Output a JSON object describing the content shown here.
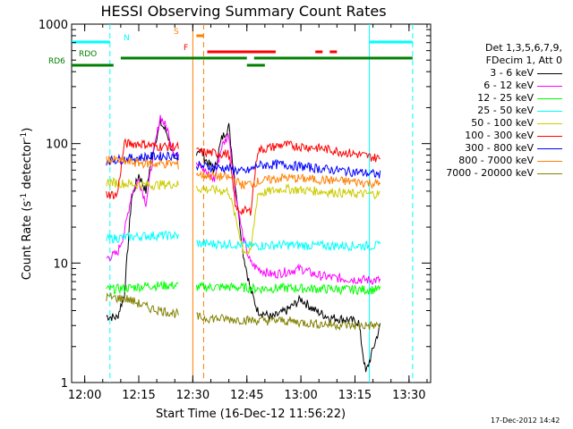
{
  "chart_data": {
    "type": "line",
    "title": "HESSI Observing Summary Count Rates",
    "xlabel": "Start Time (16-Dec-12 11:56:22)",
    "ylabel_main": "Count Rate (s",
    "ylabel_sup1": "-1",
    "ylabel_mid": " detector",
    "ylabel_sup2": "-1",
    "ylabel_end": ")",
    "y_scale": "log",
    "ylim": [
      1,
      1000
    ],
    "xlim": [
      "11:56:22",
      "13:36:00"
    ],
    "x_ticks": [
      "12:00",
      "12:15",
      "12:30",
      "12:45",
      "13:00",
      "13:15",
      "13:30"
    ],
    "y_ticks": [
      "1",
      "10",
      "100",
      "1000"
    ],
    "legend_header": [
      "Det 1,3,5,6,7,9,",
      "FDecim 1, Att 0"
    ],
    "series": [
      {
        "name": "3 - 6 keV",
        "color": "#000000",
        "values_desc": [
          [
            "12:06",
            3.6
          ],
          [
            "12:09",
            3.5
          ],
          [
            "12:11",
            5.5
          ],
          [
            "12:13",
            35
          ],
          [
            "12:15",
            55
          ],
          [
            "12:17",
            40
          ],
          [
            "12:19",
            90
          ],
          [
            "12:21",
            150
          ],
          [
            "12:23",
            120
          ],
          [
            "12:25",
            70
          ],
          [
            "12:32",
            90
          ],
          [
            "12:34",
            70
          ],
          [
            "12:36",
            60
          ],
          [
            "12:38",
            110
          ],
          [
            "12:40",
            140
          ],
          [
            "12:42",
            40
          ],
          [
            "12:44",
            12
          ],
          [
            "12:46",
            6
          ],
          [
            "12:48",
            4
          ],
          [
            "12:52",
            3.5
          ],
          [
            "12:56",
            4
          ],
          [
            "13:00",
            5
          ],
          [
            "13:04",
            4
          ],
          [
            "13:08",
            3.5
          ],
          [
            "13:12",
            3.4
          ],
          [
            "13:16",
            3.2
          ],
          [
            "13:18",
            1.2
          ],
          [
            "13:22",
            3
          ]
        ]
      },
      {
        "name": "6 - 12 keV",
        "color": "#ff00ff",
        "values_desc": [
          [
            "12:06",
            11
          ],
          [
            "12:09",
            12
          ],
          [
            "12:11",
            18
          ],
          [
            "12:13",
            38
          ],
          [
            "12:15",
            50
          ],
          [
            "12:17",
            32
          ],
          [
            "12:19",
            80
          ],
          [
            "12:21",
            170
          ],
          [
            "12:23",
            130
          ],
          [
            "12:25",
            80
          ],
          [
            "12:32",
            70
          ],
          [
            "12:34",
            55
          ],
          [
            "12:36",
            50
          ],
          [
            "12:38",
            95
          ],
          [
            "12:40",
            120
          ],
          [
            "12:42",
            35
          ],
          [
            "12:44",
            16
          ],
          [
            "12:46",
            10
          ],
          [
            "12:48",
            9
          ],
          [
            "12:52",
            8
          ],
          [
            "12:56",
            8.5
          ],
          [
            "13:00",
            9
          ],
          [
            "13:04",
            8
          ],
          [
            "13:08",
            7.6
          ],
          [
            "13:12",
            7.4
          ],
          [
            "13:16",
            7.3
          ],
          [
            "13:20",
            7.2
          ],
          [
            "13:22",
            7.2
          ]
        ]
      },
      {
        "name": "12 - 25 keV",
        "color": "#00ff00",
        "values_desc": [
          [
            "12:06",
            6
          ],
          [
            "12:12",
            6.2
          ],
          [
            "12:18",
            6.5
          ],
          [
            "12:25",
            6.5
          ],
          [
            "12:32",
            6.3
          ],
          [
            "12:40",
            6.3
          ],
          [
            "12:46",
            6.2
          ],
          [
            "12:48",
            6.1
          ],
          [
            "12:55",
            6.2
          ],
          [
            "13:05",
            6.1
          ],
          [
            "13:15",
            6
          ],
          [
            "13:22",
            6
          ]
        ]
      },
      {
        "name": "25 - 50 keV",
        "color": "#00ffff",
        "values_desc": [
          [
            "12:06",
            16
          ],
          [
            "12:12",
            16.5
          ],
          [
            "12:18",
            17
          ],
          [
            "12:25",
            17
          ],
          [
            "12:32",
            14.5
          ],
          [
            "12:40",
            14.5
          ],
          [
            "12:46",
            14
          ],
          [
            "12:48",
            14
          ],
          [
            "12:55",
            14.2
          ],
          [
            "13:05",
            14
          ],
          [
            "13:15",
            14
          ],
          [
            "13:22",
            14
          ]
        ]
      },
      {
        "name": "50 - 100 keV",
        "color": "#cccc00",
        "values_desc": [
          [
            "12:06",
            48
          ],
          [
            "12:12",
            46
          ],
          [
            "12:18",
            45
          ],
          [
            "12:25",
            46
          ],
          [
            "12:32",
            42
          ],
          [
            "12:40",
            40
          ],
          [
            "12:44",
            13
          ],
          [
            "12:46",
            12
          ],
          [
            "12:48",
            38
          ],
          [
            "12:55",
            42
          ],
          [
            "13:05",
            40
          ],
          [
            "13:15",
            38
          ],
          [
            "13:22",
            38
          ]
        ]
      },
      {
        "name": "100 - 300 keV",
        "color": "#ff0000",
        "values_desc": [
          [
            "12:06",
            38
          ],
          [
            "12:09",
            37
          ],
          [
            "12:11",
            100
          ],
          [
            "12:16",
            100
          ],
          [
            "12:20",
            95
          ],
          [
            "12:25",
            95
          ],
          [
            "12:32",
            85
          ],
          [
            "12:40",
            82
          ],
          [
            "12:42",
            28
          ],
          [
            "12:46",
            27
          ],
          [
            "12:48",
            88
          ],
          [
            "12:55",
            98
          ],
          [
            "13:05",
            92
          ],
          [
            "13:15",
            82
          ],
          [
            "13:22",
            75
          ]
        ]
      },
      {
        "name": "300 - 800 keV",
        "color": "#0000ff",
        "values_desc": [
          [
            "12:06",
            72
          ],
          [
            "12:12",
            75
          ],
          [
            "12:18",
            78
          ],
          [
            "12:25",
            80
          ],
          [
            "12:32",
            65
          ],
          [
            "12:40",
            62
          ],
          [
            "12:44",
            58
          ],
          [
            "12:46",
            60
          ],
          [
            "12:48",
            66
          ],
          [
            "12:55",
            67
          ],
          [
            "13:05",
            62
          ],
          [
            "13:15",
            58
          ],
          [
            "13:22",
            55
          ]
        ]
      },
      {
        "name": "800 - 7000 keV",
        "color": "#ff7f00",
        "values_desc": [
          [
            "12:06",
            75
          ],
          [
            "12:12",
            70
          ],
          [
            "12:18",
            68
          ],
          [
            "12:25",
            68
          ],
          [
            "12:32",
            55
          ],
          [
            "12:40",
            52
          ],
          [
            "12:44",
            45
          ],
          [
            "12:48",
            48
          ],
          [
            "12:55",
            52
          ],
          [
            "13:05",
            50
          ],
          [
            "13:15",
            48
          ],
          [
            "13:22",
            46
          ]
        ]
      },
      {
        "name": "7000 - 20000 keV",
        "color": "#808000",
        "values_desc": [
          [
            "12:06",
            5.2
          ],
          [
            "12:12",
            5
          ],
          [
            "12:18",
            4.2
          ],
          [
            "12:25",
            3.8
          ],
          [
            "12:32",
            3.5
          ],
          [
            "12:40",
            3.4
          ],
          [
            "12:48",
            3.3
          ],
          [
            "12:55",
            3.3
          ],
          [
            "13:05",
            3.1
          ],
          [
            "13:15",
            3
          ],
          [
            "13:22",
            3
          ]
        ]
      }
    ],
    "flag_rows": [
      {
        "label": "N",
        "color": "#00ffff",
        "segments": [
          [
            "11:56:22",
            "12:07"
          ],
          [
            "13:19",
            "13:31"
          ]
        ]
      },
      {
        "label": "S",
        "color": "#ff7f00",
        "segments": [
          [
            "12:31",
            "12:33"
          ]
        ]
      },
      {
        "label": "F",
        "color": "#ff0000",
        "segments": [
          [
            "12:34",
            "12:53"
          ],
          [
            "13:04",
            "13:06"
          ],
          [
            "13:08",
            "13:10"
          ]
        ]
      },
      {
        "label": "RDO",
        "color": "#008000",
        "segments": [
          [
            "12:10",
            "12:45"
          ],
          [
            "12:47",
            "13:31"
          ]
        ]
      },
      {
        "label": "RD6",
        "color": "#008000",
        "segments": [
          [
            "11:56:22",
            "12:08"
          ],
          [
            "12:45",
            "12:50"
          ]
        ]
      }
    ],
    "vlines": [
      {
        "time": "12:07",
        "color": "#00ffff",
        "style": "dashed"
      },
      {
        "time": "13:19",
        "color": "#00ffff",
        "style": "solid"
      },
      {
        "time": "13:31",
        "color": "#00ffff",
        "style": "dashed"
      },
      {
        "time": "12:30",
        "color": "#ff7f00",
        "style": "solid"
      },
      {
        "time": "12:33",
        "color": "#ff7f00",
        "style": "dashed"
      }
    ],
    "footer": "17-Dec-2012 14:42"
  }
}
